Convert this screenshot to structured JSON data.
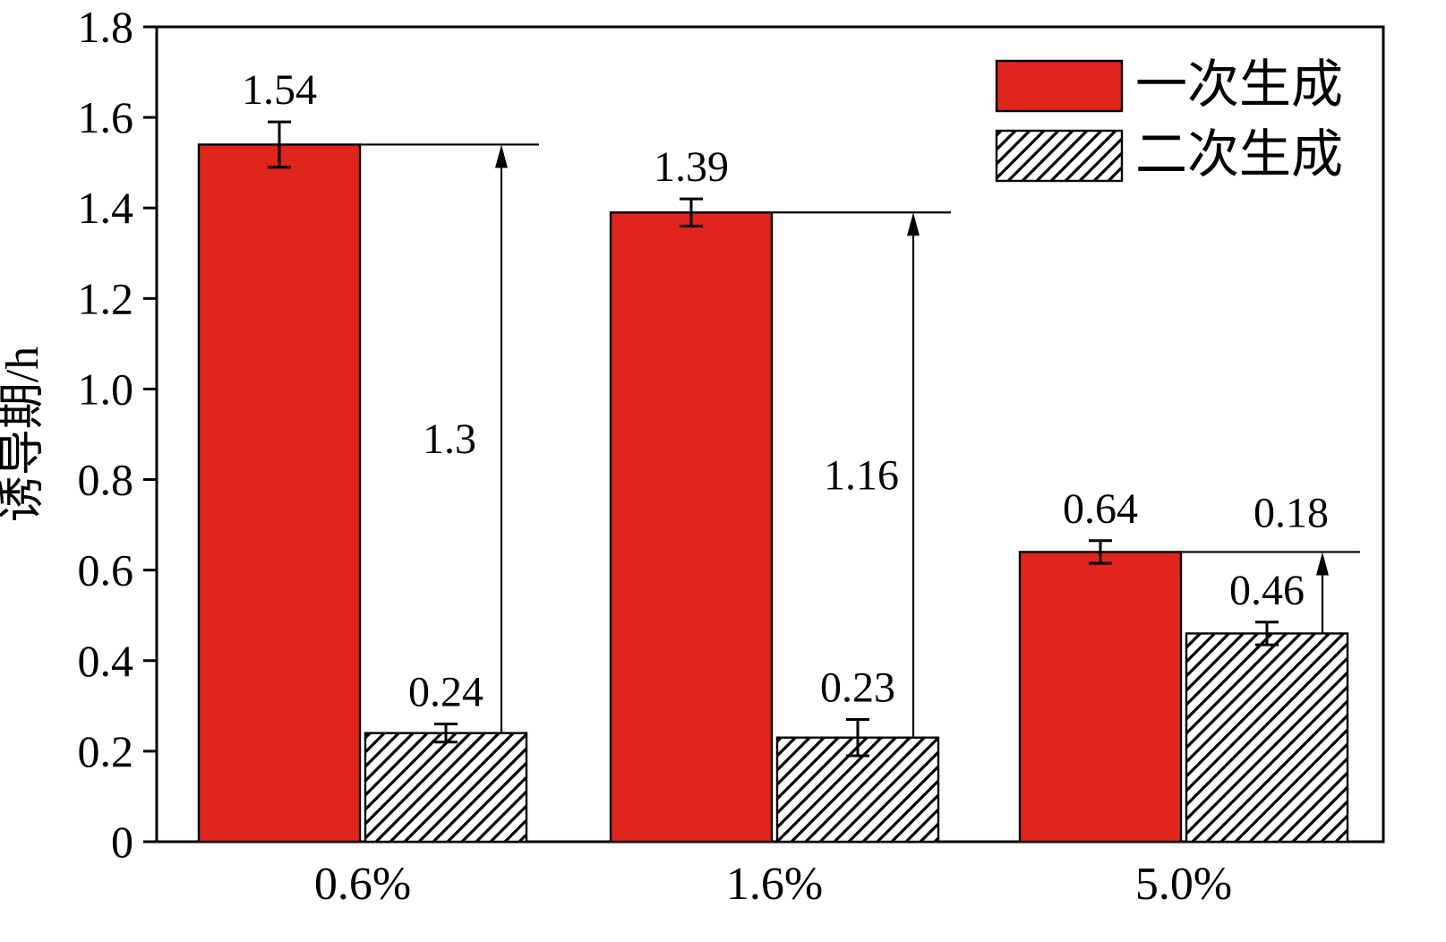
{
  "chart_data": {
    "type": "bar",
    "title": "",
    "xlabel": "",
    "ylabel": "诱导期/h",
    "categories": [
      "0.6%",
      "1.6%",
      "5.0%"
    ],
    "series": [
      {
        "name": "一次生成",
        "style": "solid-red",
        "values": [
          1.54,
          1.39,
          0.64
        ],
        "errors": [
          0.05,
          0.03,
          0.025
        ]
      },
      {
        "name": "二次生成",
        "style": "hatched-diagonal",
        "values": [
          0.24,
          0.23,
          0.46
        ],
        "errors": [
          0.02,
          0.04,
          0.025
        ]
      }
    ],
    "bar_labels": [
      [
        "1.54",
        "1.39",
        "0.64"
      ],
      [
        "0.24",
        "0.23",
        "0.46"
      ]
    ],
    "difference_labels": [
      "1.3",
      "1.16",
      "0.18"
    ],
    "ylim": [
      0,
      1.8
    ],
    "yticks": [
      "0",
      "0.2",
      "0.4",
      "0.6",
      "0.8",
      "1.0",
      "1.2",
      "1.4",
      "1.6",
      "1.8"
    ],
    "legend_position": "top-right",
    "grid": false,
    "colors": {
      "bar_red": "#e0251c",
      "hatch": "#000000",
      "axis": "#000000",
      "background": "#ffffff"
    }
  }
}
